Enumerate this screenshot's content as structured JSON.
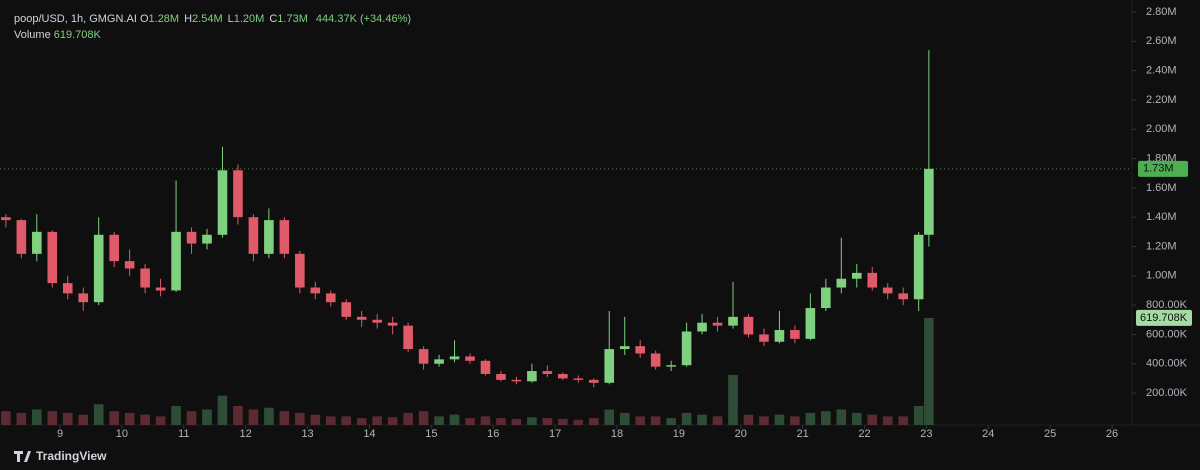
{
  "legend": {
    "symbol": "poop/USD, 1h, GMGN.AI",
    "items": [
      {
        "label": "O",
        "value": "1.28M"
      },
      {
        "label": "H",
        "value": "2.54M"
      },
      {
        "label": "L",
        "value": "1.20M"
      },
      {
        "label": "C",
        "value": "1.73M"
      }
    ],
    "change": "444.37K (+34.46%)",
    "volume_label": "Volume",
    "volume_value": "619.708K"
  },
  "branding": "TradingView",
  "chart_data": {
    "type": "candlestick",
    "x": [
      8.125,
      8.375,
      8.625,
      8.875,
      9.125,
      9.375,
      9.625,
      9.875,
      10.125,
      10.375,
      10.625,
      10.875,
      11.125,
      11.375,
      11.625,
      11.875,
      12.125,
      12.375,
      12.625,
      12.875,
      13.125,
      13.375,
      13.625,
      13.875,
      14.125,
      14.375,
      14.625,
      14.875,
      15.125,
      15.375,
      15.625,
      15.875,
      16.125,
      16.375,
      16.625,
      16.875,
      17.125,
      17.375,
      17.625,
      17.875,
      18.125,
      18.375,
      18.625,
      18.875,
      19.125,
      19.375,
      19.625,
      19.875,
      20.125,
      20.375,
      20.625,
      20.875,
      21.125,
      21.375,
      21.625,
      21.875,
      22.125,
      22.375,
      22.625,
      22.875,
      23.04
    ],
    "open": [
      1400000,
      1380000,
      1150000,
      1300000,
      950000,
      880000,
      820000,
      1280000,
      1100000,
      1050000,
      920000,
      900000,
      1300000,
      1220000,
      1280000,
      1720000,
      1400000,
      1150000,
      1380000,
      1150000,
      920000,
      880000,
      820000,
      720000,
      700000,
      680000,
      660000,
      500000,
      400000,
      430000,
      450000,
      420000,
      330000,
      290000,
      280000,
      350000,
      330000,
      300000,
      290000,
      270000,
      500000,
      520000,
      470000,
      380000,
      390000,
      620000,
      680000,
      660000,
      720000,
      600000,
      550000,
      630000,
      570000,
      780000,
      920000,
      980000,
      1020000,
      920000,
      880000,
      840000,
      1280000
    ],
    "high": [
      1420000,
      1390000,
      1420000,
      1310000,
      1000000,
      920000,
      1400000,
      1300000,
      1180000,
      1080000,
      980000,
      1650000,
      1330000,
      1320000,
      1880000,
      1760000,
      1420000,
      1460000,
      1400000,
      1170000,
      960000,
      900000,
      840000,
      760000,
      740000,
      720000,
      680000,
      520000,
      460000,
      560000,
      470000,
      430000,
      350000,
      310000,
      400000,
      390000,
      340000,
      320000,
      300000,
      760000,
      720000,
      560000,
      490000,
      420000,
      680000,
      740000,
      720000,
      960000,
      740000,
      640000,
      760000,
      660000,
      880000,
      980000,
      1260000,
      1080000,
      1060000,
      950000,
      920000,
      1300000,
      2540000
    ],
    "low": [
      1330000,
      1120000,
      1100000,
      920000,
      840000,
      760000,
      800000,
      1060000,
      1000000,
      880000,
      860000,
      890000,
      1150000,
      1180000,
      1260000,
      1350000,
      1100000,
      1120000,
      1120000,
      880000,
      840000,
      790000,
      700000,
      650000,
      640000,
      600000,
      480000,
      360000,
      380000,
      410000,
      400000,
      320000,
      280000,
      260000,
      270000,
      310000,
      290000,
      270000,
      240000,
      260000,
      460000,
      440000,
      360000,
      350000,
      380000,
      600000,
      620000,
      640000,
      580000,
      520000,
      540000,
      540000,
      560000,
      760000,
      880000,
      920000,
      900000,
      840000,
      800000,
      760000,
      1200000
    ],
    "close": [
      1380000,
      1150000,
      1300000,
      950000,
      880000,
      820000,
      1280000,
      1100000,
      1050000,
      920000,
      900000,
      1300000,
      1220000,
      1280000,
      1720000,
      1400000,
      1150000,
      1380000,
      1150000,
      920000,
      880000,
      820000,
      720000,
      700000,
      680000,
      660000,
      500000,
      400000,
      430000,
      450000,
      420000,
      330000,
      290000,
      280000,
      350000,
      330000,
      300000,
      290000,
      270000,
      500000,
      520000,
      470000,
      380000,
      390000,
      620000,
      680000,
      660000,
      720000,
      600000,
      550000,
      630000,
      570000,
      780000,
      920000,
      980000,
      1020000,
      920000,
      880000,
      840000,
      1280000,
      1730000
    ],
    "volume": [
      80000,
      70000,
      90000,
      80000,
      70000,
      60000,
      120000,
      80000,
      70000,
      60000,
      50000,
      110000,
      80000,
      90000,
      170000,
      110000,
      90000,
      100000,
      80000,
      70000,
      60000,
      50000,
      50000,
      40000,
      50000,
      45000,
      70000,
      80000,
      50000,
      60000,
      40000,
      50000,
      40000,
      35000,
      45000,
      40000,
      35000,
      30000,
      40000,
      90000,
      70000,
      50000,
      50000,
      40000,
      70000,
      60000,
      50000,
      290000,
      60000,
      50000,
      60000,
      50000,
      70000,
      80000,
      90000,
      70000,
      60000,
      50000,
      50000,
      110000,
      619708
    ],
    "up_color": "#7fd17f",
    "down_color": "#e05a6a",
    "volume_up_color": "#2f4d36",
    "volume_down_color": "#5b2a32",
    "xlim": [
      8.03,
      26.29
    ],
    "xticks": [
      9,
      10,
      11,
      12,
      13,
      14,
      15,
      16,
      17,
      18,
      19,
      20,
      21,
      22,
      23,
      24,
      25,
      26
    ],
    "ylim": [
      -18000,
      2882000
    ],
    "yticks": [
      {
        "value": 200000,
        "label": "200.00K"
      },
      {
        "value": 400000,
        "label": "400.00K"
      },
      {
        "value": 600000,
        "label": "600.00K"
      },
      {
        "value": 800000,
        "label": "800.00K"
      },
      {
        "value": 1000000,
        "label": "1.00M"
      },
      {
        "value": 1200000,
        "label": "1.20M"
      },
      {
        "value": 1400000,
        "label": "1.40M"
      },
      {
        "value": 1600000,
        "label": "1.60M"
      },
      {
        "value": 1800000,
        "label": "1.80M"
      },
      {
        "value": 2000000,
        "label": "2.00M"
      },
      {
        "value": 2200000,
        "label": "2.20M"
      },
      {
        "value": 2400000,
        "label": "2.40M"
      },
      {
        "value": 2600000,
        "label": "2.60M"
      },
      {
        "value": 2800000,
        "label": "2.80M"
      }
    ],
    "y2lim": [
      0,
      2460000
    ],
    "last_price": {
      "value": 1730000,
      "label": "1.73M"
    },
    "last_volume": {
      "value": 619708,
      "label": "619.708K"
    },
    "grid": false
  }
}
